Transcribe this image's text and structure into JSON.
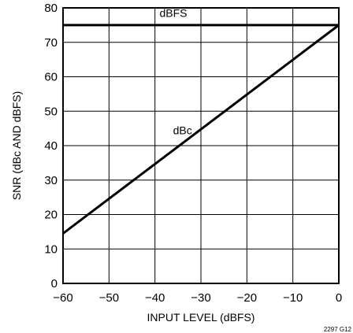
{
  "chart_data": {
    "type": "line",
    "title": "",
    "xlabel": "INPUT LEVEL (dBFS)",
    "ylabel": "SNR (dBc AND dBFS)",
    "xlim": [
      -60,
      0
    ],
    "ylim": [
      0,
      80
    ],
    "x_ticks": [
      -60,
      -50,
      -40,
      -30,
      -20,
      -10,
      0
    ],
    "x_tick_labels": [
      "−60",
      "−50",
      "−40",
      "−30",
      "−20",
      "−10",
      "0"
    ],
    "y_ticks": [
      0,
      10,
      20,
      30,
      40,
      50,
      60,
      70,
      80
    ],
    "y_tick_labels": [
      "0",
      "10",
      "20",
      "30",
      "40",
      "50",
      "60",
      "70",
      "80"
    ],
    "grid": true,
    "series": [
      {
        "name": "dBFS",
        "x": [
          -60,
          0
        ],
        "y": [
          75,
          75
        ],
        "color": "#000000"
      },
      {
        "name": "dBc",
        "x": [
          -60,
          0
        ],
        "y": [
          14.5,
          75
        ],
        "color": "#000000"
      }
    ],
    "annotations": [
      {
        "text": "dBFS",
        "x": -36,
        "y": 78.5
      },
      {
        "text": "dBc",
        "x": -34,
        "y": 44.5
      }
    ],
    "figure_id": "2297 G12"
  }
}
